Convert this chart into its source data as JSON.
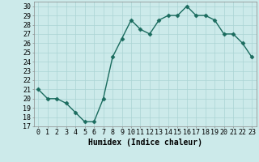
{
  "x": [
    0,
    1,
    2,
    3,
    4,
    5,
    6,
    7,
    8,
    9,
    10,
    11,
    12,
    13,
    14,
    15,
    16,
    17,
    18,
    19,
    20,
    21,
    22,
    23
  ],
  "y": [
    21,
    20,
    20,
    19.5,
    18.5,
    17.5,
    17.5,
    20,
    24.5,
    26.5,
    28.5,
    27.5,
    27,
    28.5,
    29,
    29,
    30,
    29,
    29,
    28.5,
    27,
    27,
    26,
    24.5
  ],
  "line_color": "#1a6b5e",
  "marker_color": "#1a6b5e",
  "bg_color": "#cceaea",
  "grid_color": "#aad4d4",
  "xlabel": "Humidex (Indice chaleur)",
  "ylabel": "",
  "xlim": [
    -0.5,
    23.5
  ],
  "ylim": [
    17,
    30.5
  ],
  "yticks": [
    17,
    18,
    19,
    20,
    21,
    22,
    23,
    24,
    25,
    26,
    27,
    28,
    29,
    30
  ],
  "xticks": [
    0,
    1,
    2,
    3,
    4,
    5,
    6,
    7,
    8,
    9,
    10,
    11,
    12,
    13,
    14,
    15,
    16,
    17,
    18,
    19,
    20,
    21,
    22,
    23
  ],
  "xlabel_fontsize": 7,
  "tick_fontsize": 6,
  "linewidth": 1.0,
  "markersize": 2.5
}
